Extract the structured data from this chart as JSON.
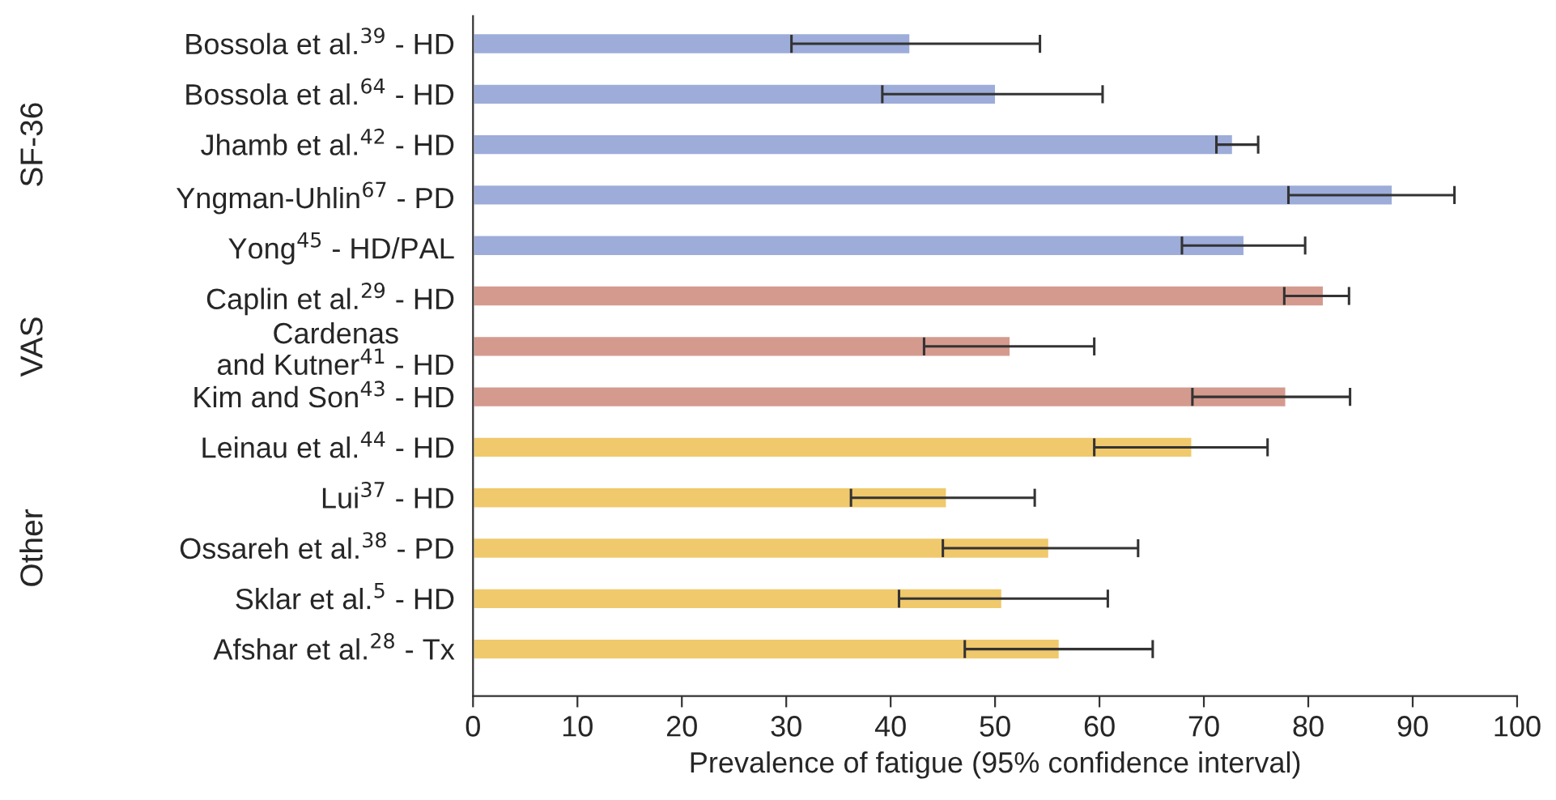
{
  "chart_data": {
    "type": "bar",
    "orientation": "horizontal",
    "xlabel": "Prevalence of fatigue (95% confidence interval)",
    "categories": [
      "Bossola et al.$^{39}$ - HD",
      "Bossola et al.$^{64}$ - HD",
      "Jhamb et al.$^{42}$ - HD",
      "Yngman-Uhlin$^{67}$ - PD",
      "Yong$^{45}$ - HD/PAL",
      "Caplin et al.$^{29}$ - HD",
      "Cardenas\nand Kutner$^{41}$ - HD",
      "Kim and Son$^{43}$ - HD",
      "Leinau et al.$^{44}$ - HD",
      "Lui$^{37}$ - HD",
      "Ossareh et al.$^{38}$ - PD",
      "Sklar et al.$^{5}$ - HD",
      "Afshar et al.$^{28}$ - Tx"
    ],
    "values": [
      41.9,
      50.1,
      72.8,
      88.1,
      73.9,
      81.5,
      51.5,
      77.9,
      68.9,
      45.4,
      55.2,
      50.7,
      56.2
    ],
    "errors": [
      [
        30.5,
        54.3
      ],
      [
        39.2,
        60.3
      ],
      [
        71.2,
        75.2
      ],
      [
        78.1,
        94.0
      ],
      [
        67.9,
        79.7
      ],
      [
        77.7,
        83.9
      ],
      [
        43.2,
        59.5
      ],
      [
        68.9,
        84.0
      ],
      [
        59.5,
        76.1
      ],
      [
        36.2,
        53.8
      ],
      [
        45.0,
        63.7
      ],
      [
        40.8,
        60.8
      ],
      [
        47.1,
        65.1
      ]
    ],
    "colors": [
      "#9dacd9",
      "#9dacd9",
      "#9dacd9",
      "#9dacd9",
      "#9dacd9",
      "#d49a8e",
      "#d49a8e",
      "#d49a8e",
      "#f0c96c",
      "#f0c96c",
      "#f0c96c",
      "#f0c96c",
      "#f0c96c"
    ],
    "xlim": [
      0,
      100
    ],
    "xticks": [
      0,
      10,
      20,
      30,
      40,
      50,
      60,
      70,
      80,
      90,
      100
    ],
    "grid": false,
    "legend": false,
    "annotations": [
      "SF-36",
      "VAS",
      "Other"
    ]
  }
}
